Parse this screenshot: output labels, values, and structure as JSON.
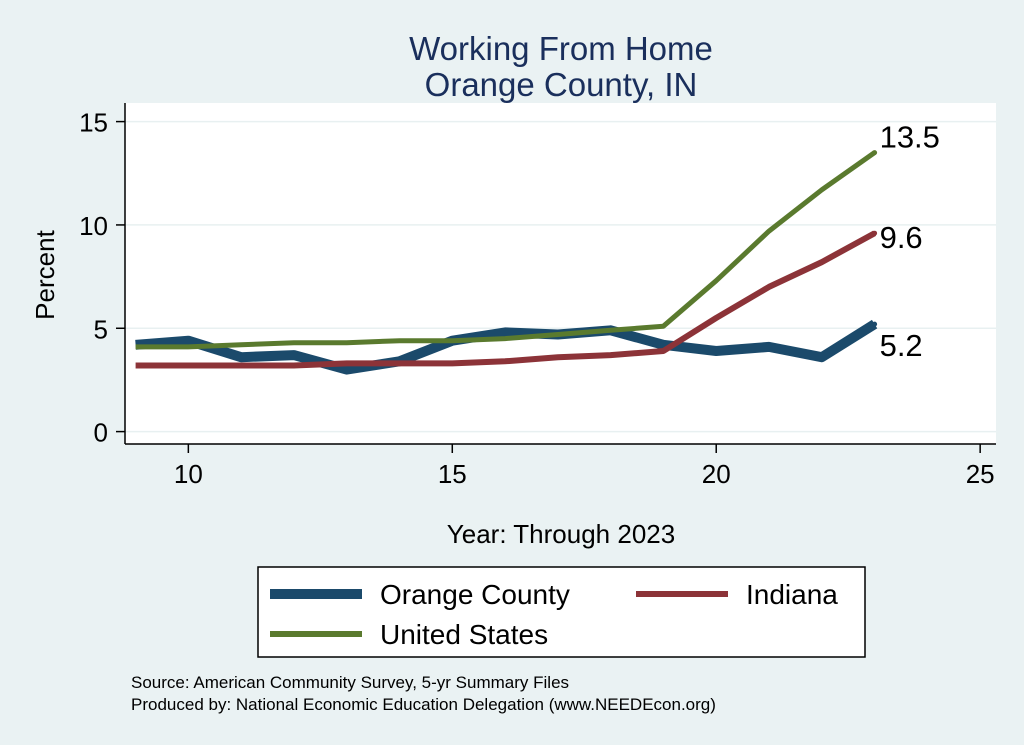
{
  "chart_data": {
    "type": "line",
    "title": [
      "Working From Home",
      "Orange County, IN"
    ],
    "xlabel": "Year: Through 2023",
    "ylabel": "Percent",
    "xlim": [
      8.8,
      25.3
    ],
    "ylim": [
      -0.6,
      15.9
    ],
    "xticks": [
      10,
      15,
      20,
      25
    ],
    "yticks": [
      0,
      5,
      10,
      15
    ],
    "grid": true,
    "legend_position": "bottom",
    "series": [
      {
        "name": "Orange County",
        "color": "#1b4a6b",
        "x": [
          9,
          10,
          11,
          12,
          13,
          14,
          15,
          16,
          17,
          18,
          19,
          20,
          21,
          22,
          23
        ],
        "values": [
          4.2,
          4.4,
          3.6,
          3.7,
          3.0,
          3.4,
          4.4,
          4.8,
          4.7,
          4.9,
          4.2,
          3.9,
          4.1,
          3.6,
          5.2
        ],
        "end_label": "5.2"
      },
      {
        "name": "Indiana",
        "color": "#8c3338",
        "x": [
          9,
          10,
          11,
          12,
          13,
          14,
          15,
          16,
          17,
          18,
          19,
          20,
          21,
          22,
          23
        ],
        "values": [
          3.2,
          3.2,
          3.2,
          3.2,
          3.3,
          3.3,
          3.3,
          3.4,
          3.6,
          3.7,
          3.9,
          5.5,
          7.0,
          8.2,
          9.6
        ],
        "end_label": "9.6"
      },
      {
        "name": "United States",
        "color": "#5a7a2e",
        "x": [
          9,
          10,
          11,
          12,
          13,
          14,
          15,
          16,
          17,
          18,
          19,
          20,
          21,
          22,
          23
        ],
        "values": [
          4.1,
          4.1,
          4.2,
          4.3,
          4.3,
          4.4,
          4.4,
          4.5,
          4.7,
          4.9,
          5.1,
          7.3,
          9.7,
          11.7,
          13.5
        ],
        "end_label": "13.5"
      }
    ]
  },
  "source_lines": [
    "Source: American Community Survey, 5-yr Summary Files",
    "Produced by: National Economic Education Delegation (www.NEEDEcon.org)"
  ]
}
